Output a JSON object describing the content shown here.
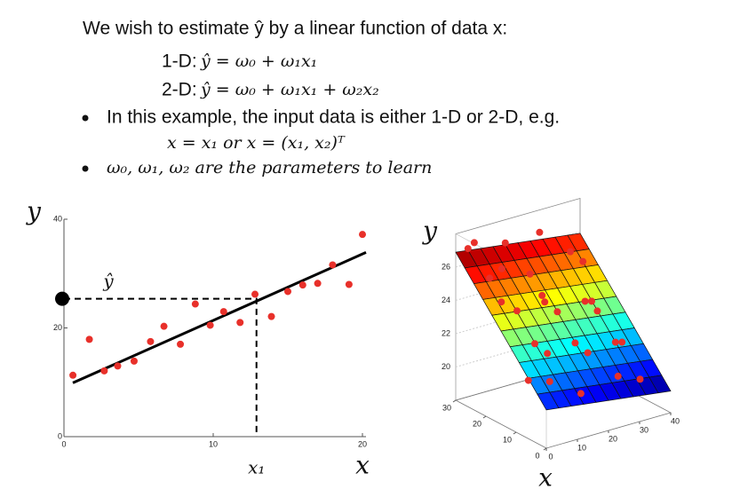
{
  "slide": {
    "intro": "We wish to estimate ŷ by a linear function of data x:",
    "eq1_label": "1-D:",
    "eq1": "ŷ = ω₀ + ω₁x₁",
    "eq2_label": "2-D:",
    "eq2": "ŷ = ω₀ + ω₁x₁ + ω₂x₂",
    "bullet1": "In this example, the input data is either 1-D or 2-D, e.g.",
    "eq3": "x = x₁ or x = (x₁, x₂)ᵀ",
    "bullet2": "ω₀, ω₁, ω₂ are the parameters to learn"
  },
  "chart_data": [
    {
      "type": "scatter",
      "ylabel": "y",
      "xlabel": "x",
      "yhat_label": "ŷ",
      "x1_label": "x₁",
      "xlim": [
        0,
        20
      ],
      "ylim": [
        0,
        40
      ],
      "xticks": [
        0,
        10,
        20
      ],
      "yticks": [
        0,
        20,
        40
      ],
      "x": [
        0.6,
        1.7,
        2.7,
        3.6,
        4.7,
        5.8,
        6.7,
        7.8,
        8.8,
        9.8,
        10.7,
        11.8,
        12.8,
        13.9,
        15,
        16,
        17,
        18,
        19.1,
        20
      ],
      "y": [
        11.3,
        17.9,
        12.1,
        13,
        13.9,
        17.5,
        20.3,
        17,
        24.4,
        20.5,
        23,
        21,
        26.2,
        22.1,
        26.7,
        27.9,
        28.2,
        31.6,
        28,
        37.2
      ],
      "color": "#e8302a",
      "fit": {
        "intercept": 9.4,
        "slope": 1.2,
        "color": "#000000"
      },
      "estimate_x": 12.9
    },
    {
      "type": "surface3d",
      "zlabel": "y",
      "xlabel": "x",
      "x1lim": [
        0,
        40
      ],
      "x2lim": [
        0,
        30
      ],
      "zlim": [
        18,
        28
      ],
      "x1ticks": [
        0,
        10,
        20,
        30,
        40
      ],
      "x2ticks": [
        0,
        10,
        20,
        30
      ],
      "zticks": [
        20,
        22,
        24,
        26
      ],
      "fit": {
        "intercept": 20.3,
        "slope_x1": -0.025,
        "slope_x2": 0.22
      },
      "color": "#e8302a",
      "points": {
        "x1": [
          2,
          5,
          8,
          14,
          20,
          26,
          32,
          38,
          3,
          10,
          16,
          22,
          28,
          34,
          6,
          12,
          18,
          24,
          30,
          36,
          4,
          15,
          25,
          35,
          9,
          20,
          30,
          2
        ],
        "x2": [
          28,
          29,
          27,
          28,
          26,
          29,
          25,
          27,
          18,
          20,
          17,
          19,
          16,
          20,
          10,
          12,
          9,
          11,
          8,
          12,
          3,
          4,
          2,
          5,
          24,
          22,
          14,
          8
        ],
        "z": [
          27.2,
          27.3,
          25.2,
          26.9,
          24.9,
          26.8,
          25.7,
          24.6,
          24.9,
          23.8,
          24.3,
          23.2,
          23.8,
          23.1,
          23.0,
          21.9,
          22.5,
          21.4,
          22.0,
          21.3,
          21.5,
          20.1,
          20.8,
          19.8,
          26.0,
          24.0,
          23.3,
          21.2
        ]
      }
    }
  ]
}
